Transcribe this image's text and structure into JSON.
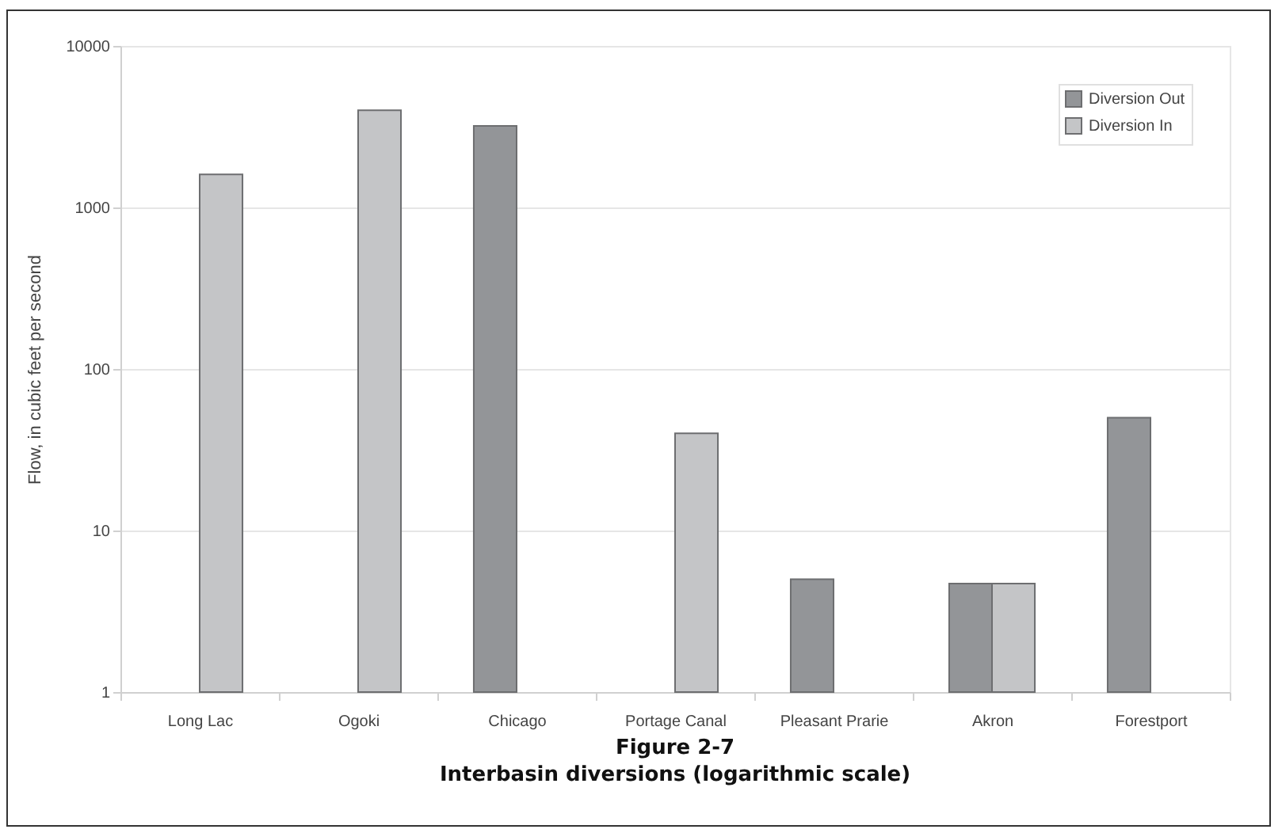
{
  "chart_data": {
    "type": "bar",
    "title": "Figure 2-7",
    "subtitle": "Interbasin diversions (logarithmic scale)",
    "ylabel": "Flow, in cubic feet per second",
    "categories": [
      "Long Lac",
      "Ogoki",
      "Chicago",
      "Portage Canal",
      "Pleasant Prarie",
      "Akron",
      "Forestport"
    ],
    "series": [
      {
        "name": "Diversion Out",
        "color": "#939598",
        "values": [
          null,
          null,
          3200,
          null,
          5,
          4.7,
          50
        ]
      },
      {
        "name": "Diversion In",
        "color": "#c4c5c7",
        "values": [
          1600,
          4000,
          null,
          40,
          null,
          4.7,
          null
        ]
      }
    ],
    "log": true,
    "ylim": [
      1,
      10000
    ],
    "yticks": [
      1,
      10,
      100,
      1000,
      10000
    ],
    "grid": "y",
    "legend": "top right"
  }
}
